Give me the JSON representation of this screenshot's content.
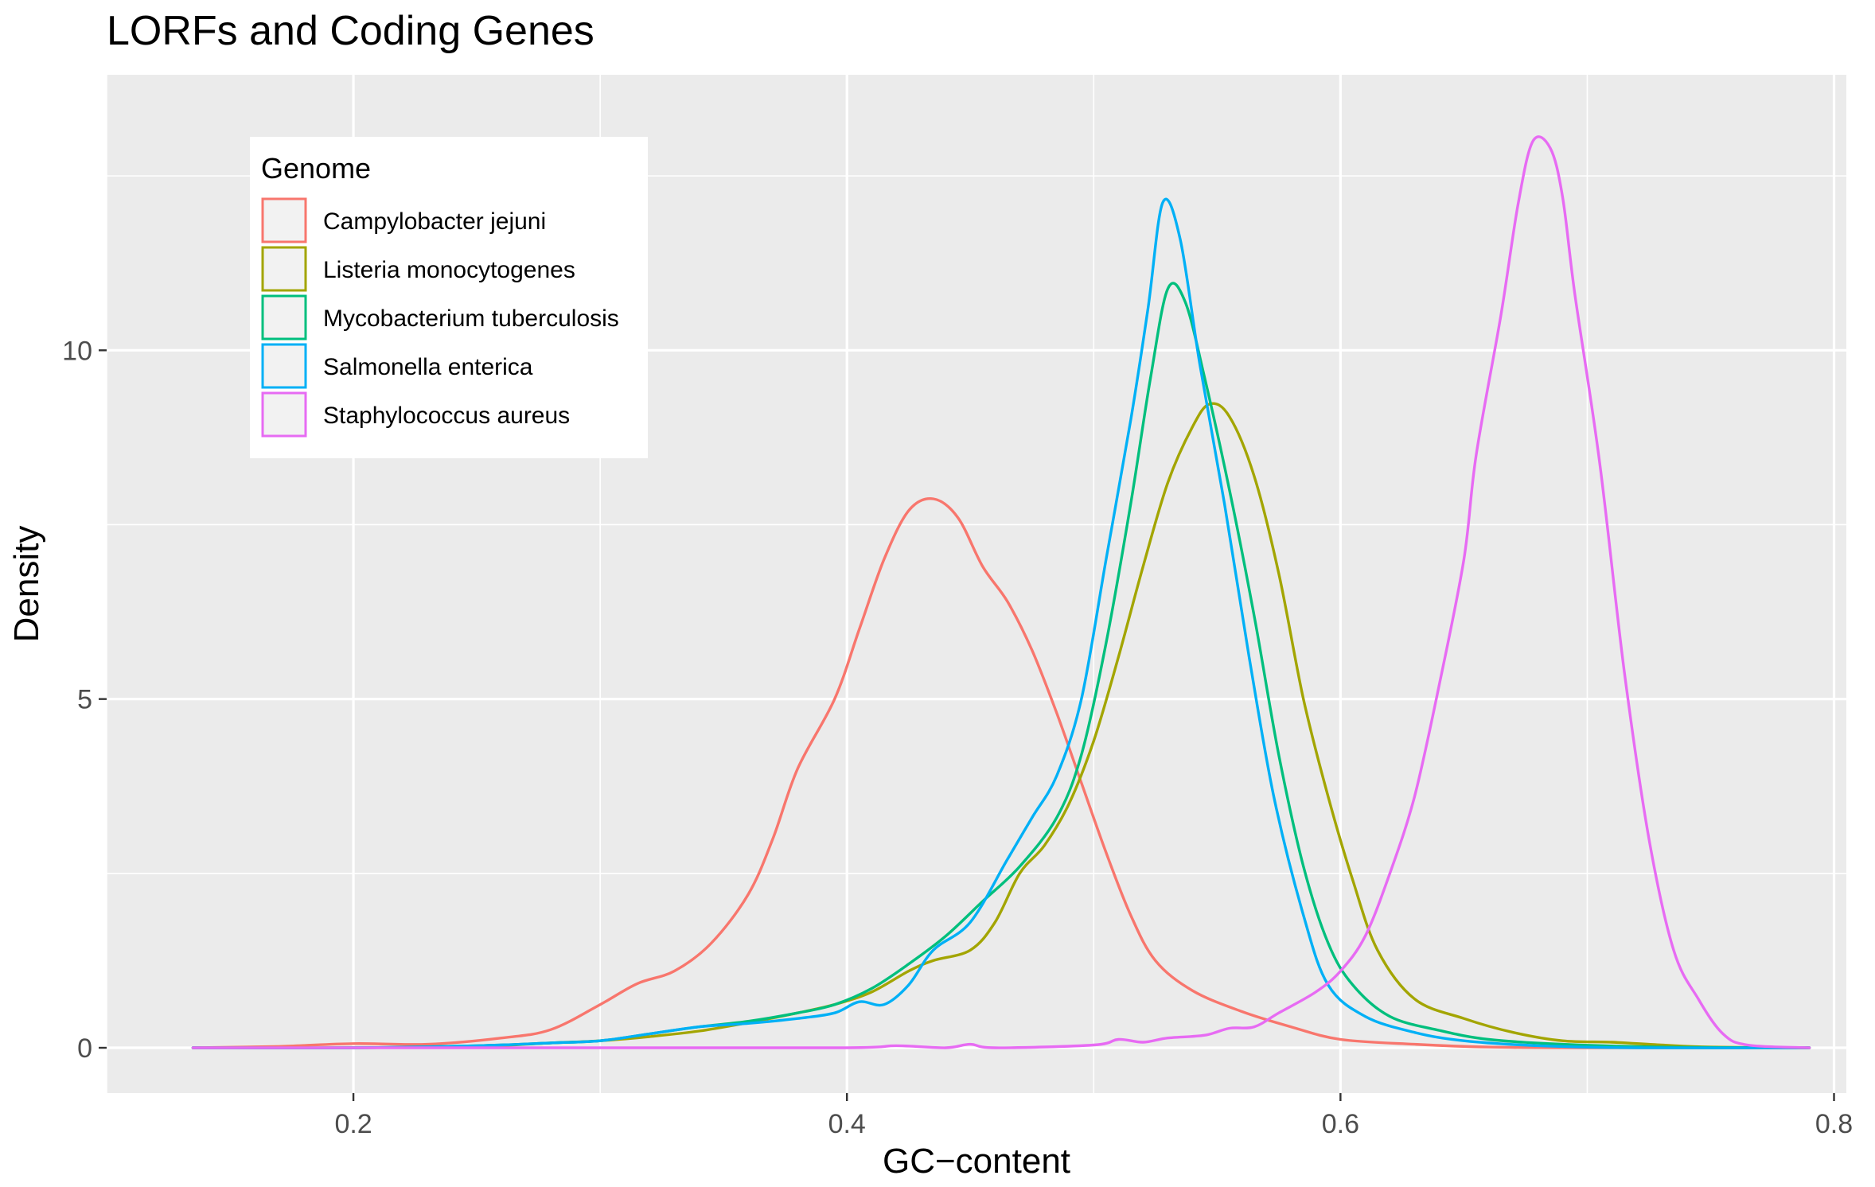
{
  "chart_data": {
    "type": "line",
    "title": "LORFs and Coding Genes",
    "xlabel": "GC−content",
    "ylabel": "Density",
    "xlim": [
      0.1,
      0.805
    ],
    "ylim": [
      -0.65,
      13.95
    ],
    "x_ticks": [
      0.2,
      0.4,
      0.6,
      0.8
    ],
    "x_tick_labels": [
      "0.2",
      "0.4",
      "0.6",
      "0.8"
    ],
    "y_ticks": [
      0,
      5,
      10
    ],
    "y_tick_labels": [
      "0",
      "5",
      "10"
    ],
    "grid": true,
    "legend": {
      "title": "Genome",
      "position": "top-left"
    },
    "colors": {
      "panel": "#ebebeb",
      "grid": "#ffffff"
    },
    "series": [
      {
        "name": "Campylobacter jejuni",
        "color": "#F8766D",
        "points": [
          [
            0.135,
            0.0
          ],
          [
            0.17,
            0.02
          ],
          [
            0.2,
            0.06
          ],
          [
            0.23,
            0.05
          ],
          [
            0.26,
            0.14
          ],
          [
            0.28,
            0.26
          ],
          [
            0.3,
            0.62
          ],
          [
            0.315,
            0.92
          ],
          [
            0.33,
            1.1
          ],
          [
            0.345,
            1.5
          ],
          [
            0.36,
            2.2
          ],
          [
            0.37,
            3.0
          ],
          [
            0.38,
            4.0
          ],
          [
            0.395,
            5.0
          ],
          [
            0.405,
            6.0
          ],
          [
            0.415,
            7.0
          ],
          [
            0.425,
            7.7
          ],
          [
            0.435,
            7.87
          ],
          [
            0.445,
            7.6
          ],
          [
            0.455,
            6.9
          ],
          [
            0.465,
            6.4
          ],
          [
            0.475,
            5.7
          ],
          [
            0.485,
            4.8
          ],
          [
            0.495,
            3.8
          ],
          [
            0.505,
            2.8
          ],
          [
            0.515,
            1.9
          ],
          [
            0.525,
            1.25
          ],
          [
            0.54,
            0.82
          ],
          [
            0.56,
            0.52
          ],
          [
            0.58,
            0.3
          ],
          [
            0.6,
            0.12
          ],
          [
            0.63,
            0.05
          ],
          [
            0.66,
            0.01
          ],
          [
            0.7,
            0.0
          ],
          [
            0.79,
            0.0
          ]
        ]
      },
      {
        "name": "Listeria monocytogenes",
        "color": "#A3A500",
        "points": [
          [
            0.135,
            0.0
          ],
          [
            0.2,
            0.0
          ],
          [
            0.25,
            0.02
          ],
          [
            0.28,
            0.07
          ],
          [
            0.3,
            0.1
          ],
          [
            0.32,
            0.16
          ],
          [
            0.34,
            0.24
          ],
          [
            0.36,
            0.36
          ],
          [
            0.38,
            0.5
          ],
          [
            0.395,
            0.62
          ],
          [
            0.41,
            0.8
          ],
          [
            0.425,
            1.1
          ],
          [
            0.435,
            1.25
          ],
          [
            0.45,
            1.4
          ],
          [
            0.46,
            1.8
          ],
          [
            0.47,
            2.5
          ],
          [
            0.48,
            2.9
          ],
          [
            0.49,
            3.5
          ],
          [
            0.5,
            4.4
          ],
          [
            0.51,
            5.6
          ],
          [
            0.52,
            6.9
          ],
          [
            0.53,
            8.1
          ],
          [
            0.54,
            8.9
          ],
          [
            0.547,
            9.23
          ],
          [
            0.555,
            9.05
          ],
          [
            0.565,
            8.2
          ],
          [
            0.575,
            6.8
          ],
          [
            0.585,
            5.0
          ],
          [
            0.595,
            3.6
          ],
          [
            0.605,
            2.4
          ],
          [
            0.615,
            1.4
          ],
          [
            0.63,
            0.7
          ],
          [
            0.65,
            0.42
          ],
          [
            0.67,
            0.22
          ],
          [
            0.69,
            0.1
          ],
          [
            0.71,
            0.08
          ],
          [
            0.73,
            0.04
          ],
          [
            0.75,
            0.01
          ],
          [
            0.79,
            0.0
          ]
        ]
      },
      {
        "name": "Mycobacterium tuberculosis",
        "color": "#00BF7D",
        "points": [
          [
            0.135,
            0.0
          ],
          [
            0.2,
            0.0
          ],
          [
            0.25,
            0.03
          ],
          [
            0.28,
            0.07
          ],
          [
            0.3,
            0.1
          ],
          [
            0.32,
            0.2
          ],
          [
            0.34,
            0.3
          ],
          [
            0.36,
            0.38
          ],
          [
            0.38,
            0.5
          ],
          [
            0.395,
            0.62
          ],
          [
            0.41,
            0.85
          ],
          [
            0.425,
            1.2
          ],
          [
            0.44,
            1.6
          ],
          [
            0.455,
            2.1
          ],
          [
            0.47,
            2.6
          ],
          [
            0.485,
            3.3
          ],
          [
            0.495,
            4.2
          ],
          [
            0.505,
            5.8
          ],
          [
            0.515,
            7.8
          ],
          [
            0.523,
            9.6
          ],
          [
            0.53,
            10.88
          ],
          [
            0.537,
            10.7
          ],
          [
            0.545,
            9.6
          ],
          [
            0.555,
            8.0
          ],
          [
            0.565,
            6.2
          ],
          [
            0.575,
            4.2
          ],
          [
            0.585,
            2.6
          ],
          [
            0.595,
            1.5
          ],
          [
            0.605,
            0.9
          ],
          [
            0.62,
            0.45
          ],
          [
            0.64,
            0.25
          ],
          [
            0.66,
            0.12
          ],
          [
            0.69,
            0.05
          ],
          [
            0.73,
            0.01
          ],
          [
            0.79,
            0.0
          ]
        ]
      },
      {
        "name": "Salmonella enterica",
        "color": "#00B0F6",
        "points": [
          [
            0.135,
            0.0
          ],
          [
            0.2,
            0.0
          ],
          [
            0.25,
            0.03
          ],
          [
            0.28,
            0.07
          ],
          [
            0.3,
            0.1
          ],
          [
            0.32,
            0.2
          ],
          [
            0.34,
            0.3
          ],
          [
            0.36,
            0.35
          ],
          [
            0.38,
            0.42
          ],
          [
            0.395,
            0.5
          ],
          [
            0.405,
            0.66
          ],
          [
            0.415,
            0.62
          ],
          [
            0.425,
            0.9
          ],
          [
            0.435,
            1.4
          ],
          [
            0.45,
            1.8
          ],
          [
            0.465,
            2.7
          ],
          [
            0.475,
            3.3
          ],
          [
            0.485,
            3.9
          ],
          [
            0.495,
            5.0
          ],
          [
            0.505,
            7.0
          ],
          [
            0.515,
            9.0
          ],
          [
            0.522,
            10.6
          ],
          [
            0.528,
            12.12
          ],
          [
            0.535,
            11.6
          ],
          [
            0.543,
            9.8
          ],
          [
            0.553,
            7.8
          ],
          [
            0.563,
            5.6
          ],
          [
            0.573,
            3.6
          ],
          [
            0.585,
            1.9
          ],
          [
            0.595,
            0.9
          ],
          [
            0.61,
            0.45
          ],
          [
            0.63,
            0.22
          ],
          [
            0.65,
            0.1
          ],
          [
            0.68,
            0.03
          ],
          [
            0.72,
            0.0
          ],
          [
            0.79,
            0.0
          ]
        ]
      },
      {
        "name": "Staphylococcus aureus",
        "color": "#E76BF3",
        "points": [
          [
            0.135,
            0.0
          ],
          [
            0.3,
            0.0
          ],
          [
            0.4,
            0.0
          ],
          [
            0.42,
            0.03
          ],
          [
            0.44,
            0.0
          ],
          [
            0.45,
            0.05
          ],
          [
            0.46,
            0.0
          ],
          [
            0.5,
            0.04
          ],
          [
            0.51,
            0.12
          ],
          [
            0.52,
            0.08
          ],
          [
            0.53,
            0.14
          ],
          [
            0.545,
            0.18
          ],
          [
            0.555,
            0.28
          ],
          [
            0.565,
            0.3
          ],
          [
            0.575,
            0.5
          ],
          [
            0.59,
            0.8
          ],
          [
            0.6,
            1.1
          ],
          [
            0.61,
            1.6
          ],
          [
            0.62,
            2.5
          ],
          [
            0.63,
            3.6
          ],
          [
            0.64,
            5.2
          ],
          [
            0.65,
            7.0
          ],
          [
            0.655,
            8.5
          ],
          [
            0.665,
            10.5
          ],
          [
            0.672,
            12.1
          ],
          [
            0.678,
            13.0
          ],
          [
            0.685,
            12.9
          ],
          [
            0.69,
            12.2
          ],
          [
            0.695,
            10.8
          ],
          [
            0.705,
            8.4
          ],
          [
            0.715,
            5.4
          ],
          [
            0.725,
            3.0
          ],
          [
            0.735,
            1.4
          ],
          [
            0.745,
            0.7
          ],
          [
            0.755,
            0.2
          ],
          [
            0.765,
            0.04
          ],
          [
            0.79,
            0.0
          ]
        ]
      }
    ]
  }
}
